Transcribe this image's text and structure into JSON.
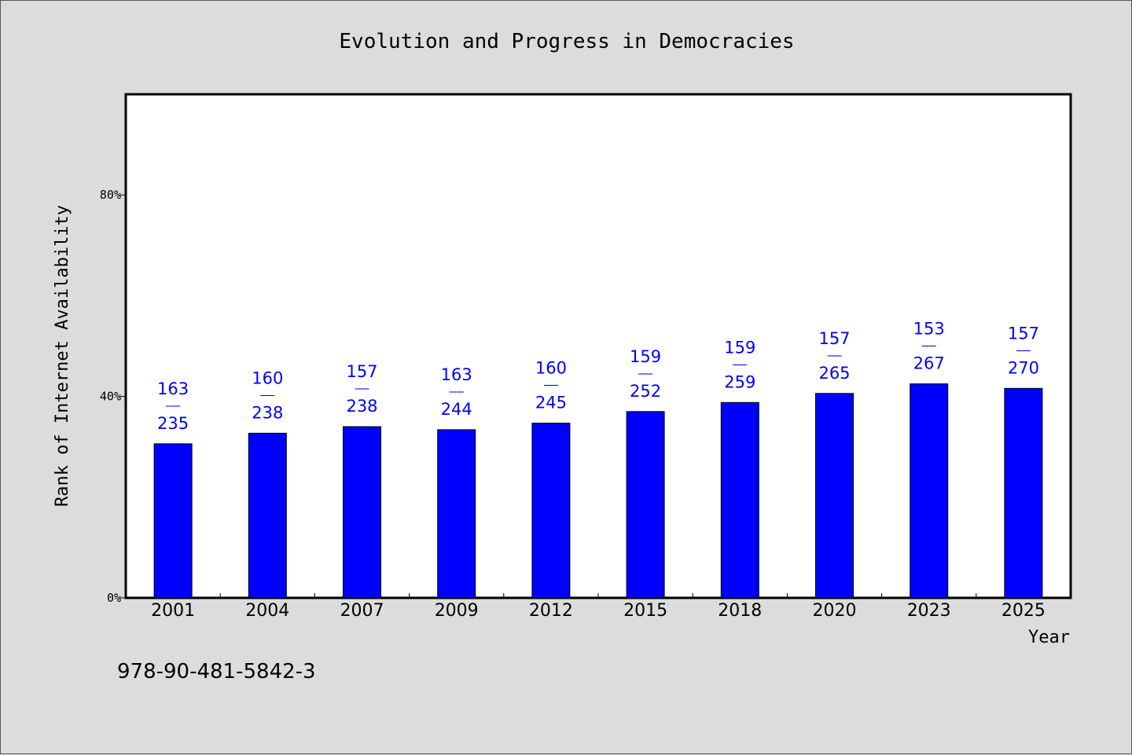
{
  "chart_data": {
    "type": "bar",
    "title": "Evolution and Progress in Democracies",
    "xlabel": "Year",
    "ylabel": "Rank of Internet Availability",
    "ylim": [
      0,
      100
    ],
    "yticks": [
      0,
      40,
      80
    ],
    "ytick_labels": [
      "0%",
      "40%",
      "80%"
    ],
    "categories": [
      "2001",
      "2004",
      "2007",
      "2009",
      "2012",
      "2015",
      "2018",
      "2020",
      "2023",
      "2025"
    ],
    "series": [
      {
        "values": [
          30.6,
          32.7,
          34.0,
          33.4,
          34.7,
          37.0,
          38.8,
          40.6,
          42.5,
          41.6
        ],
        "numerators": [
          "163",
          "160",
          "157",
          "163",
          "160",
          "159",
          "159",
          "157",
          "153",
          "157"
        ],
        "denominators": [
          "235",
          "238",
          "238",
          "244",
          "245",
          "252",
          "259",
          "265",
          "267",
          "270"
        ],
        "label_separator": "——",
        "color": "#0000ff"
      }
    ],
    "grid": false,
    "legend": "none",
    "footnote": "978-90-481-5842-3"
  }
}
